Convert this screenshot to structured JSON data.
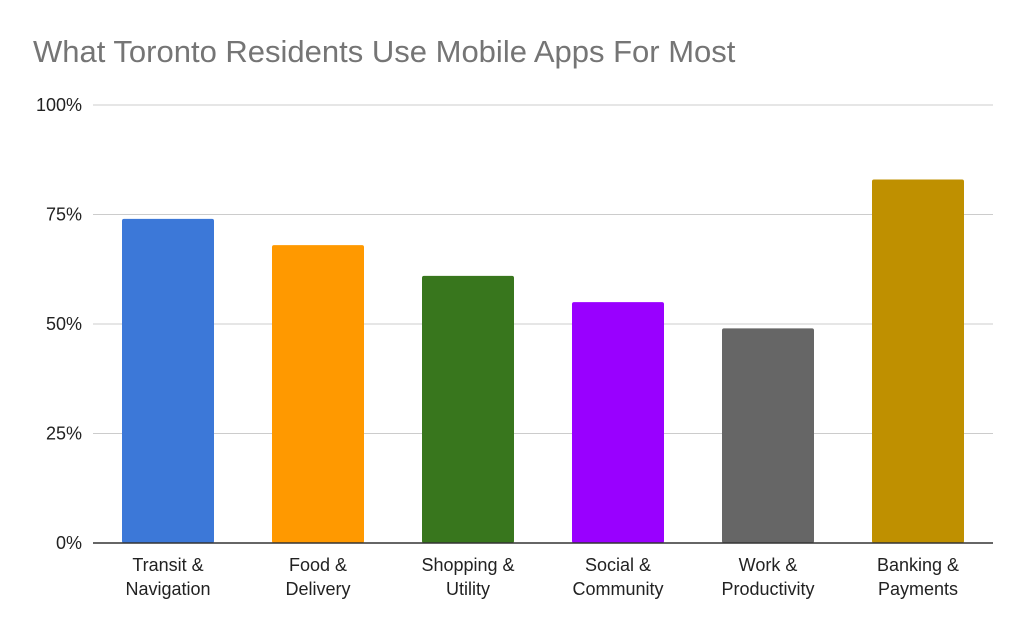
{
  "chart_data": {
    "type": "bar",
    "title": "What Toronto Residents Use Mobile Apps For Most",
    "xlabel": "",
    "ylabel": "",
    "categories": [
      [
        "Transit &",
        "Navigation"
      ],
      [
        "Food &",
        "Delivery"
      ],
      [
        "Shopping &",
        "Utility"
      ],
      [
        "Social &",
        "Community"
      ],
      [
        "Work &",
        "Productivity"
      ],
      [
        "Banking &",
        "Payments"
      ]
    ],
    "values": [
      74,
      68,
      61,
      55,
      49,
      83
    ],
    "colors": [
      "#3c78d8",
      "#ff9900",
      "#38761d",
      "#9900ff",
      "#666666",
      "#bf9000"
    ],
    "ylim": [
      0,
      100
    ],
    "yticks": [
      0,
      25,
      50,
      75,
      100
    ],
    "ytick_labels": [
      "0%",
      "25%",
      "50%",
      "75%",
      "100%"
    ],
    "grid": true,
    "legend": "none"
  }
}
